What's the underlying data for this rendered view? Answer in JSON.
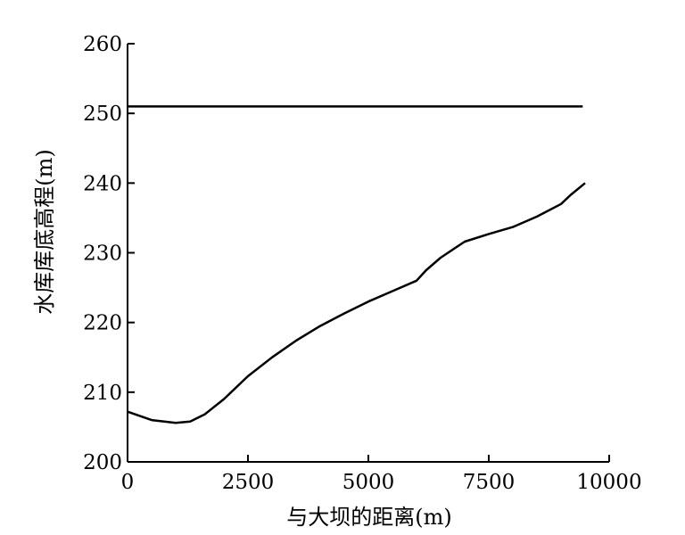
{
  "chart_data": {
    "type": "line",
    "xlabel": "与大坝的距离(m)",
    "ylabel": "水库库底高程(m)",
    "xlim": [
      0,
      10000
    ],
    "xticks": [
      0,
      2500,
      5000,
      7500,
      10000
    ],
    "ylim": [
      200,
      260
    ],
    "yticks": [
      200,
      210,
      220,
      230,
      240,
      250,
      260
    ],
    "series": [
      {
        "color": "#000000",
        "x": [
          0,
          9450
        ],
        "values": [
          251,
          251
        ]
      },
      {
        "color": "#000000",
        "x": [
          0,
          500,
          1000,
          1300,
          1600,
          2000,
          2500,
          3000,
          3500,
          4000,
          4500,
          5000,
          5500,
          6000,
          6200,
          6500,
          7000,
          7500,
          8000,
          8500,
          9000,
          9200,
          9500
        ],
        "values": [
          207.2,
          206.0,
          205.6,
          205.8,
          206.8,
          209.0,
          212.3,
          215.0,
          217.4,
          219.5,
          221.3,
          223.0,
          224.5,
          226.0,
          227.5,
          229.3,
          231.6,
          232.7,
          233.7,
          235.2,
          237.0,
          238.3,
          240.0
        ]
      }
    ]
  }
}
